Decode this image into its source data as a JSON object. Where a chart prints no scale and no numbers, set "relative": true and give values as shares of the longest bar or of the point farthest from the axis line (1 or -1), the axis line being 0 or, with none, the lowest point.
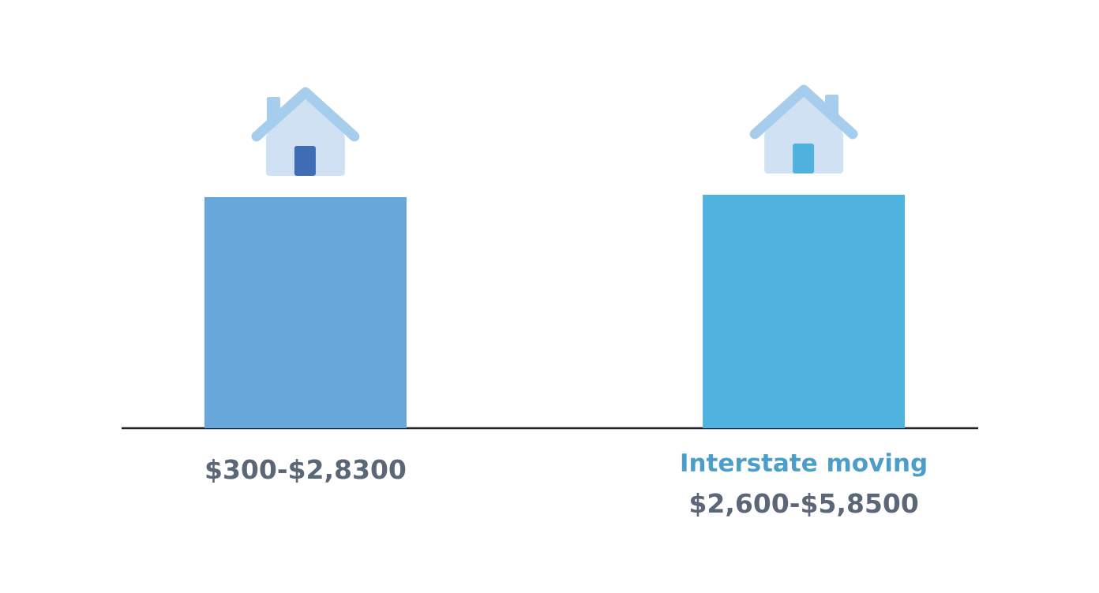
{
  "chart_data": {
    "type": "bar",
    "relative": true,
    "categories": [
      null,
      "Interstate moving"
    ],
    "values": [
      0.99,
      1
    ],
    "colors": [
      "#68a7da",
      "#50b2de"
    ],
    "annotations": [
      "$300-$2,8300",
      "$2,600-$5,8500"
    ]
  }
}
